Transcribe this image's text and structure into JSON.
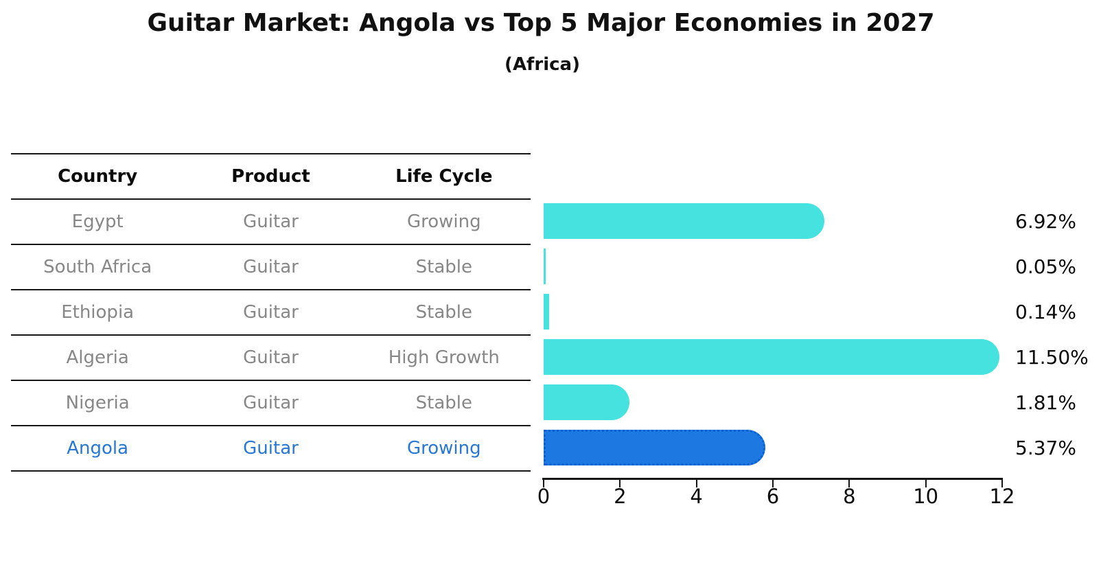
{
  "chart_data": {
    "type": "bar",
    "orientation": "horizontal",
    "title": "Guitar Market: Angola vs Top 5 Major Economies in 2027",
    "subtitle": "(Africa)",
    "categories": [
      "Egypt",
      "South Africa",
      "Ethiopia",
      "Algeria",
      "Nigeria",
      "Angola"
    ],
    "values": [
      6.92,
      0.05,
      0.14,
      11.5,
      1.81,
      5.37
    ],
    "value_labels": [
      "6.92%",
      "0.05%",
      "0.14%",
      "11.50%",
      "1.81%",
      "5.37%"
    ],
    "xlim": [
      0,
      12
    ],
    "x_ticks": [
      "0",
      "2",
      "4",
      "6",
      "8",
      "10",
      "12"
    ],
    "grid": false,
    "legend": false,
    "highlight_index": 5,
    "colors": {
      "bar": "#45E2E0",
      "highlight_bar": "#1E78E2",
      "highlight_border": "#0A5FD2",
      "value_label": "#0c0c0c",
      "axis": "#161616"
    }
  },
  "table": {
    "headers": [
      "Country",
      "Product",
      "Life Cycle"
    ],
    "rows": [
      {
        "country": "Egypt",
        "product": "Guitar",
        "life_cycle": "Growing",
        "highlight": false
      },
      {
        "country": "South Africa",
        "product": "Guitar",
        "life_cycle": "Stable",
        "highlight": false
      },
      {
        "country": "Ethiopia",
        "product": "Guitar",
        "life_cycle": "Stable",
        "highlight": false
      },
      {
        "country": "Algeria",
        "product": "Guitar",
        "life_cycle": "High Growth",
        "highlight": false
      },
      {
        "country": "Nigeria",
        "product": "Guitar",
        "life_cycle": "Stable",
        "highlight": false
      },
      {
        "country": "Angola",
        "product": "Guitar",
        "life_cycle": "Growing",
        "highlight": true
      }
    ],
    "text_color": "#878787",
    "highlight_text_color": "#2677d8"
  }
}
